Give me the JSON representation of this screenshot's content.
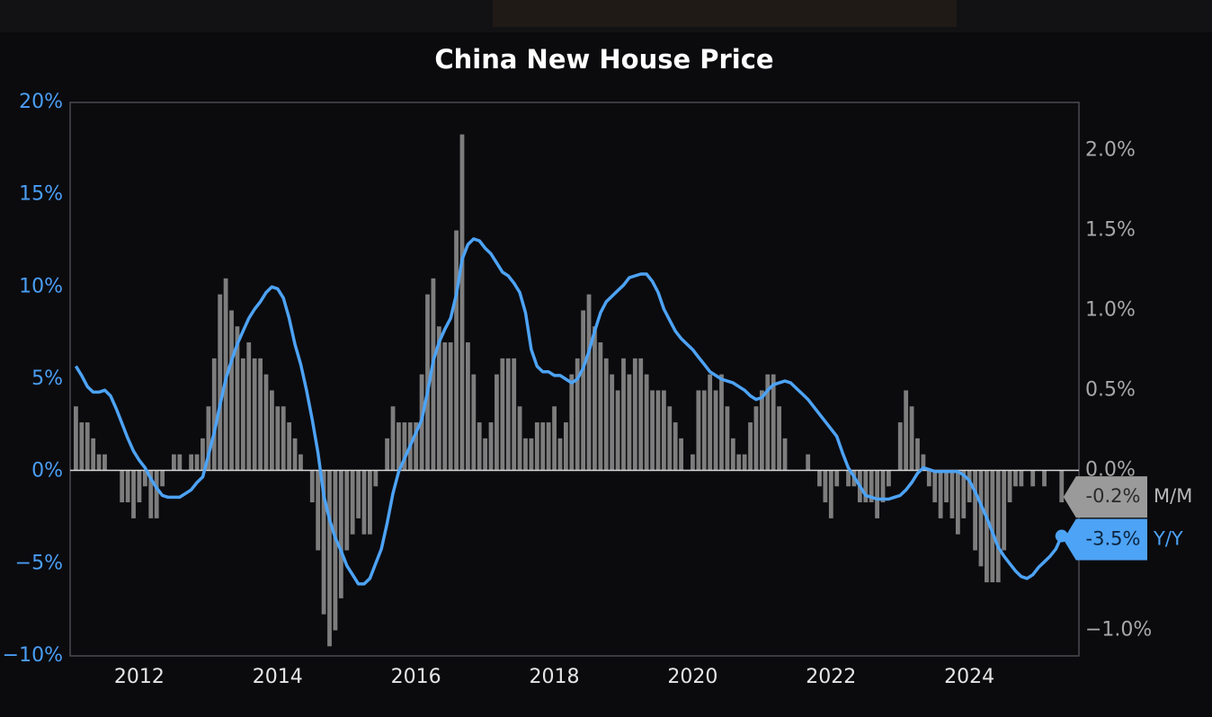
{
  "chart_data": {
    "type": "bar_line",
    "title": "China New House Price",
    "x": [
      "2011-02",
      "2011-03",
      "2011-04",
      "2011-05",
      "2011-06",
      "2011-07",
      "2011-08",
      "2011-09",
      "2011-10",
      "2011-11",
      "2011-12",
      "2012-01",
      "2012-02",
      "2012-03",
      "2012-04",
      "2012-05",
      "2012-06",
      "2012-07",
      "2012-08",
      "2012-09",
      "2012-10",
      "2012-11",
      "2012-12",
      "2013-01",
      "2013-02",
      "2013-03",
      "2013-04",
      "2013-05",
      "2013-06",
      "2013-07",
      "2013-08",
      "2013-09",
      "2013-10",
      "2013-11",
      "2013-12",
      "2014-01",
      "2014-02",
      "2014-03",
      "2014-04",
      "2014-05",
      "2014-06",
      "2014-07",
      "2014-08",
      "2014-09",
      "2014-10",
      "2014-11",
      "2014-12",
      "2015-01",
      "2015-02",
      "2015-03",
      "2015-04",
      "2015-05",
      "2015-06",
      "2015-07",
      "2015-08",
      "2015-09",
      "2015-10",
      "2015-11",
      "2015-12",
      "2016-01",
      "2016-02",
      "2016-03",
      "2016-04",
      "2016-05",
      "2016-06",
      "2016-07",
      "2016-08",
      "2016-09",
      "2016-10",
      "2016-11",
      "2016-12",
      "2017-01",
      "2017-02",
      "2017-03",
      "2017-04",
      "2017-05",
      "2017-06",
      "2017-07",
      "2017-08",
      "2017-09",
      "2017-10",
      "2017-11",
      "2017-12",
      "2018-01",
      "2018-02",
      "2018-03",
      "2018-04",
      "2018-05",
      "2018-06",
      "2018-07",
      "2018-08",
      "2018-09",
      "2018-10",
      "2018-11",
      "2018-12",
      "2019-01",
      "2019-02",
      "2019-03",
      "2019-04",
      "2019-05",
      "2019-06",
      "2019-07",
      "2019-08",
      "2019-09",
      "2019-10",
      "2019-11",
      "2019-12",
      "2020-01",
      "2020-02",
      "2020-03",
      "2020-04",
      "2020-05",
      "2020-06",
      "2020-07",
      "2020-08",
      "2020-09",
      "2020-10",
      "2020-11",
      "2020-12",
      "2021-01",
      "2021-02",
      "2021-03",
      "2021-04",
      "2021-05",
      "2021-06",
      "2021-07",
      "2021-08",
      "2021-09",
      "2021-10",
      "2021-11",
      "2021-12",
      "2022-01",
      "2022-02",
      "2022-03",
      "2022-04",
      "2022-05",
      "2022-06",
      "2022-07",
      "2022-08",
      "2022-09",
      "2022-10",
      "2022-11",
      "2022-12",
      "2023-01",
      "2023-02",
      "2023-03",
      "2023-04",
      "2023-05",
      "2023-06",
      "2023-07",
      "2023-08",
      "2023-09",
      "2023-10",
      "2023-11",
      "2023-12",
      "2024-01",
      "2024-02",
      "2024-03",
      "2024-04",
      "2024-05",
      "2024-06",
      "2024-07",
      "2024-08",
      "2024-09",
      "2024-10",
      "2024-11",
      "2024-12",
      "2025-01",
      "2025-02",
      "2025-03",
      "2025-04",
      "2025-05"
    ],
    "xlim": [
      "2011-01",
      "2025-08"
    ],
    "xticks": [
      2012,
      2014,
      2016,
      2018,
      2020,
      2022,
      2024
    ],
    "ylim": [
      -10,
      20
    ],
    "yticks": [
      {
        "value": -10,
        "label": "−10%"
      },
      {
        "value": -5,
        "label": "−5%"
      },
      {
        "value": 0,
        "label": "0%"
      },
      {
        "value": 5,
        "label": "5%"
      },
      {
        "value": 10,
        "label": "10%"
      },
      {
        "value": 15,
        "label": "15%"
      },
      {
        "value": 20,
        "label": "20%"
      }
    ],
    "y2lim": [
      -1.16,
      2.3
    ],
    "y2ticks": [
      {
        "value": -1.0,
        "label": "−1.0%"
      },
      {
        "value": 0.0,
        "label": "0.0%"
      },
      {
        "value": 0.5,
        "label": "0.5%"
      },
      {
        "value": 1.0,
        "label": "1.0%"
      },
      {
        "value": 1.5,
        "label": "1.5%"
      },
      {
        "value": 2.0,
        "label": "2.0%"
      }
    ],
    "series": [
      {
        "name": "M/M",
        "kind": "bar",
        "axis": "y2",
        "color": "#7d7d7d",
        "last_label": "-0.2%",
        "values": [
          0.4,
          0.3,
          0.3,
          0.2,
          0.1,
          0.1,
          0.0,
          0.0,
          -0.2,
          -0.2,
          -0.3,
          -0.2,
          -0.1,
          -0.3,
          -0.3,
          -0.1,
          0.0,
          0.1,
          0.1,
          0.0,
          0.1,
          0.1,
          0.2,
          0.4,
          0.7,
          1.1,
          1.2,
          1.0,
          0.9,
          0.7,
          0.8,
          0.7,
          0.7,
          0.6,
          0.5,
          0.4,
          0.4,
          0.3,
          0.2,
          0.1,
          0.0,
          -0.2,
          -0.5,
          -0.9,
          -1.1,
          -1.0,
          -0.8,
          -0.5,
          -0.4,
          -0.3,
          -0.4,
          -0.4,
          -0.1,
          0.0,
          0.2,
          0.4,
          0.3,
          0.3,
          0.3,
          0.3,
          0.6,
          1.1,
          1.2,
          0.9,
          0.8,
          0.8,
          1.5,
          2.1,
          0.8,
          0.6,
          0.3,
          0.2,
          0.3,
          0.6,
          0.7,
          0.7,
          0.7,
          0.4,
          0.2,
          0.2,
          0.3,
          0.3,
          0.3,
          0.4,
          0.2,
          0.3,
          0.6,
          0.7,
          1.0,
          1.1,
          0.9,
          0.8,
          0.7,
          0.6,
          0.5,
          0.7,
          0.6,
          0.7,
          0.7,
          0.6,
          0.5,
          0.5,
          0.5,
          0.4,
          0.3,
          0.2,
          0.0,
          0.1,
          0.5,
          0.5,
          0.6,
          0.5,
          0.6,
          0.4,
          0.2,
          0.1,
          0.1,
          0.3,
          0.4,
          0.5,
          0.6,
          0.6,
          0.4,
          0.2,
          0.0,
          0.0,
          0.0,
          0.1,
          0.0,
          -0.1,
          -0.2,
          -0.3,
          -0.1,
          0.0,
          -0.1,
          -0.1,
          -0.2,
          -0.2,
          -0.2,
          -0.3,
          -0.2,
          -0.1,
          0.0,
          0.3,
          0.5,
          0.4,
          0.2,
          0.1,
          -0.1,
          -0.2,
          -0.3,
          -0.2,
          -0.3,
          -0.4,
          -0.3,
          -0.2,
          -0.5,
          -0.6,
          -0.7,
          -0.7,
          -0.7,
          -0.5,
          -0.2,
          -0.1,
          -0.1,
          0.0,
          -0.1,
          0.0,
          -0.1,
          0.0,
          0.0,
          -0.2
        ]
      },
      {
        "name": "Y/Y",
        "kind": "line",
        "axis": "y",
        "color": "#4da3f5",
        "last_label": "-3.5%",
        "values": [
          5.7,
          5.2,
          4.6,
          4.3,
          4.3,
          4.4,
          4.1,
          3.4,
          2.6,
          1.8,
          1.1,
          0.6,
          0.2,
          -0.4,
          -0.9,
          -1.3,
          -1.4,
          -1.4,
          -1.4,
          -1.2,
          -1.0,
          -0.6,
          -0.3,
          0.9,
          2.1,
          3.6,
          5.0,
          6.0,
          6.9,
          7.6,
          8.3,
          8.8,
          9.2,
          9.7,
          10.0,
          9.9,
          9.4,
          8.3,
          6.9,
          5.8,
          4.4,
          2.8,
          1.0,
          -1.3,
          -2.6,
          -3.6,
          -4.3,
          -5.1,
          -5.6,
          -6.1,
          -6.1,
          -5.8,
          -5.0,
          -4.2,
          -2.8,
          -1.2,
          0.0,
          0.7,
          1.4,
          2.1,
          2.8,
          4.3,
          6.0,
          7.0,
          7.7,
          8.3,
          9.6,
          11.5,
          12.3,
          12.6,
          12.5,
          12.1,
          11.8,
          11.3,
          10.8,
          10.6,
          10.2,
          9.7,
          8.6,
          6.6,
          5.7,
          5.4,
          5.4,
          5.2,
          5.2,
          5.0,
          4.8,
          5.0,
          5.6,
          6.5,
          7.6,
          8.6,
          9.2,
          9.5,
          9.8,
          10.1,
          10.5,
          10.6,
          10.7,
          10.7,
          10.3,
          9.7,
          8.8,
          8.2,
          7.6,
          7.2,
          6.9,
          6.6,
          6.2,
          5.8,
          5.4,
          5.2,
          5.0,
          4.9,
          4.8,
          4.6,
          4.4,
          4.1,
          3.9,
          4.0,
          4.4,
          4.7,
          4.8,
          4.9,
          4.8,
          4.5,
          4.2,
          3.9,
          3.5,
          3.1,
          2.7,
          2.3,
          1.9,
          1.0,
          0.2,
          -0.3,
          -0.8,
          -1.3,
          -1.4,
          -1.5,
          -1.5,
          -1.5,
          -1.4,
          -1.3,
          -1.0,
          -0.6,
          -0.1,
          0.2,
          0.1,
          0.0,
          0.0,
          0.0,
          0.0,
          0.0,
          -0.2,
          -0.5,
          -1.1,
          -1.8,
          -2.5,
          -3.3,
          -4.1,
          -4.6,
          -5.0,
          -5.4,
          -5.7,
          -5.8,
          -5.6,
          -5.2,
          -4.9,
          -4.6,
          -4.2,
          -3.5
        ]
      }
    ]
  }
}
